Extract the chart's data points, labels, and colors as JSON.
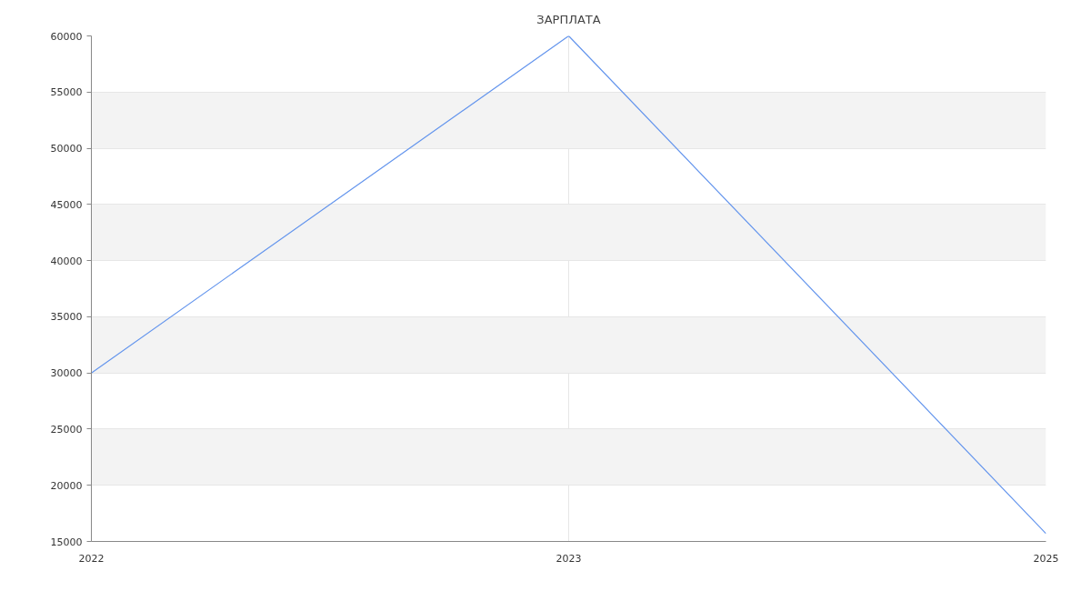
{
  "chart_data": {
    "type": "line",
    "title": "ЗАРПЛАТА",
    "categories": [
      "2022",
      "2023",
      "2025"
    ],
    "series": [
      {
        "color": "#6495ed",
        "values": [
          30000,
          60000,
          15700
        ]
      }
    ],
    "ylim": [
      15000,
      60000
    ],
    "yticks": [
      15000,
      20000,
      25000,
      30000,
      35000,
      40000,
      45000,
      50000,
      55000,
      60000
    ],
    "grid": true,
    "line_style": "solid"
  }
}
